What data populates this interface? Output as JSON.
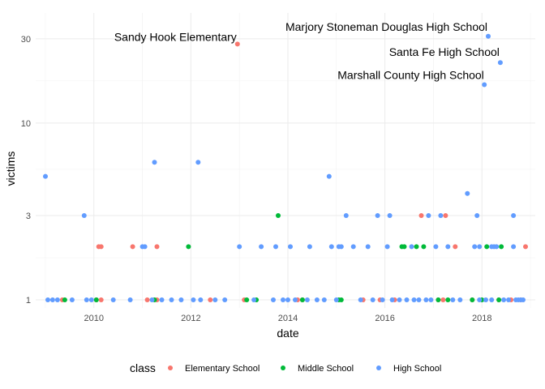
{
  "chart_data": {
    "type": "scatter",
    "xlabel": "date",
    "ylabel": "victims",
    "x_ticks": [
      "2010",
      "2012",
      "2014",
      "2016",
      "2018"
    ],
    "y_ticks": [
      1,
      3,
      10,
      30
    ],
    "y_scale": "log",
    "ylim": [
      0.9,
      42
    ],
    "xlim": [
      2008.8,
      2019.1
    ],
    "grid": true,
    "legend": {
      "title": "class",
      "position": "bottom"
    },
    "annotations": [
      {
        "text": "Sandy Hook Elementary",
        "x": 2012.96,
        "y": 28
      },
      {
        "text": "Marjory Stoneman Douglas High School",
        "x": 2018.13,
        "y": 32
      },
      {
        "text": "Santa Fe High School",
        "x": 2018.38,
        "y": 23
      },
      {
        "text": "Marshall County High School",
        "x": 2018.06,
        "y": 17
      }
    ],
    "series": [
      {
        "name": "Elementary School",
        "color": "#F8766D",
        "points": [
          [
            2009.35,
            1
          ],
          [
            2010.05,
            1
          ],
          [
            2010.15,
            1
          ],
          [
            2010.1,
            2
          ],
          [
            2010.15,
            2
          ],
          [
            2010.8,
            2
          ],
          [
            2011.1,
            1
          ],
          [
            2011.3,
            1
          ],
          [
            2011.3,
            2
          ],
          [
            2012.4,
            1
          ],
          [
            2012.96,
            28
          ],
          [
            2013.1,
            1
          ],
          [
            2014.2,
            1
          ],
          [
            2014.3,
            1
          ],
          [
            2015.55,
            1
          ],
          [
            2015.9,
            1
          ],
          [
            2016.2,
            1
          ],
          [
            2016.75,
            3
          ],
          [
            2017.1,
            1
          ],
          [
            2017.2,
            1
          ],
          [
            2017.25,
            3
          ],
          [
            2017.45,
            2
          ],
          [
            2017.8,
            1
          ],
          [
            2018.35,
            1
          ],
          [
            2018.6,
            1
          ],
          [
            2018.8,
            1
          ],
          [
            2018.9,
            2
          ]
        ]
      },
      {
        "name": "Middle School",
        "color": "#00BA38",
        "points": [
          [
            2009.4,
            1
          ],
          [
            2010.05,
            1
          ],
          [
            2011.25,
            1
          ],
          [
            2011.95,
            2
          ],
          [
            2013.15,
            1
          ],
          [
            2013.35,
            1
          ],
          [
            2013.8,
            3
          ],
          [
            2014.3,
            1
          ],
          [
            2015.05,
            1
          ],
          [
            2015.1,
            1
          ],
          [
            2016.35,
            2
          ],
          [
            2016.4,
            2
          ],
          [
            2016.65,
            2
          ],
          [
            2016.8,
            2
          ],
          [
            2017.1,
            1
          ],
          [
            2017.3,
            1
          ],
          [
            2017.8,
            1
          ],
          [
            2018.0,
            1
          ],
          [
            2018.1,
            2
          ],
          [
            2018.35,
            1
          ],
          [
            2018.4,
            2
          ]
        ]
      },
      {
        "name": "High School",
        "color": "#619CFF",
        "points": [
          [
            2009.0,
            5
          ],
          [
            2009.05,
            1
          ],
          [
            2009.15,
            1
          ],
          [
            2009.25,
            1
          ],
          [
            2009.55,
            1
          ],
          [
            2009.8,
            3
          ],
          [
            2009.85,
            1
          ],
          [
            2009.95,
            1
          ],
          [
            2010.4,
            1
          ],
          [
            2010.75,
            1
          ],
          [
            2011.0,
            2
          ],
          [
            2011.05,
            2
          ],
          [
            2011.2,
            1
          ],
          [
            2011.25,
            6
          ],
          [
            2011.4,
            1
          ],
          [
            2011.6,
            1
          ],
          [
            2011.8,
            1
          ],
          [
            2012.05,
            1
          ],
          [
            2012.15,
            6
          ],
          [
            2012.2,
            1
          ],
          [
            2012.5,
            1
          ],
          [
            2012.7,
            1
          ],
          [
            2013.0,
            2
          ],
          [
            2013.3,
            1
          ],
          [
            2013.45,
            2
          ],
          [
            2013.7,
            1
          ],
          [
            2013.75,
            2
          ],
          [
            2013.9,
            1
          ],
          [
            2014.0,
            1
          ],
          [
            2014.05,
            2
          ],
          [
            2014.15,
            1
          ],
          [
            2014.4,
            1
          ],
          [
            2014.45,
            2
          ],
          [
            2014.6,
            1
          ],
          [
            2014.75,
            1
          ],
          [
            2014.85,
            5
          ],
          [
            2014.9,
            2
          ],
          [
            2015.0,
            1
          ],
          [
            2015.05,
            2
          ],
          [
            2015.1,
            2
          ],
          [
            2015.2,
            3
          ],
          [
            2015.35,
            2
          ],
          [
            2015.5,
            1
          ],
          [
            2015.65,
            2
          ],
          [
            2015.75,
            1
          ],
          [
            2015.85,
            3
          ],
          [
            2015.95,
            1
          ],
          [
            2016.05,
            2
          ],
          [
            2016.1,
            3
          ],
          [
            2016.15,
            1
          ],
          [
            2016.3,
            1
          ],
          [
            2016.45,
            1
          ],
          [
            2016.55,
            2
          ],
          [
            2016.6,
            1
          ],
          [
            2016.7,
            1
          ],
          [
            2016.85,
            1
          ],
          [
            2016.9,
            3
          ],
          [
            2016.95,
            1
          ],
          [
            2017.05,
            2
          ],
          [
            2017.15,
            3
          ],
          [
            2017.3,
            2
          ],
          [
            2017.4,
            1
          ],
          [
            2017.55,
            1
          ],
          [
            2017.7,
            4
          ],
          [
            2017.85,
            2
          ],
          [
            2017.9,
            3
          ],
          [
            2017.95,
            1
          ],
          [
            2018.05,
            16.5
          ],
          [
            2018.08,
            1
          ],
          [
            2018.13,
            31
          ],
          [
            2018.2,
            1
          ],
          [
            2018.25,
            2
          ],
          [
            2018.38,
            22
          ],
          [
            2018.45,
            1
          ],
          [
            2018.55,
            1
          ],
          [
            2018.65,
            2
          ],
          [
            2018.7,
            1
          ],
          [
            2018.75,
            1
          ],
          [
            2018.8,
            1
          ],
          [
            2018.85,
            1
          ],
          [
            2018.65,
            3
          ],
          [
            2017.95,
            2
          ],
          [
            2018.2,
            2
          ],
          [
            2018.3,
            2
          ]
        ]
      }
    ]
  }
}
